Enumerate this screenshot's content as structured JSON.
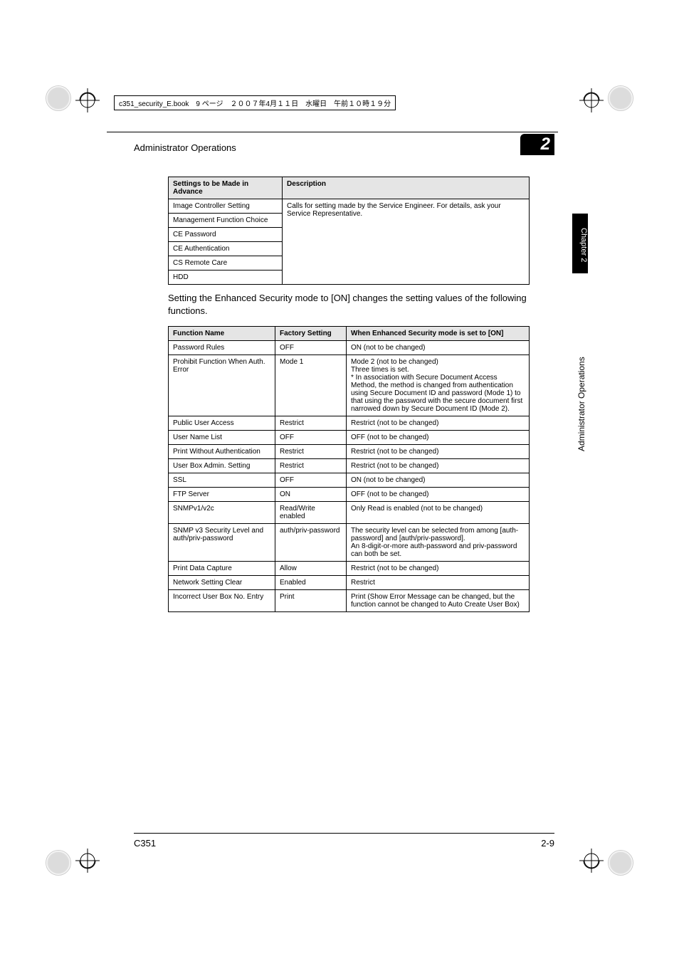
{
  "printmark_text": "c351_security_E.book　9 ページ　２００７年4月１１日　水曜日　午前１０時１９分",
  "header": {
    "title": "Administrator Operations",
    "badge": "2"
  },
  "sideTab": {
    "chapter": "Chapter 2",
    "label": "Administrator Operations"
  },
  "table1": {
    "headers": [
      "Settings to be Made in Advance",
      "Description"
    ],
    "desc_merged": "Calls for setting made by the Service Engineer. For details, ask your Service Representative.",
    "rows": [
      "Image Controller Setting",
      "Management Function Choice",
      "CE Password",
      "CE Authentication",
      "CS Remote Care",
      "HDD"
    ]
  },
  "paragraph": "Setting the Enhanced Security mode to [ON] changes the setting values of the following functions.",
  "table2": {
    "headers": [
      "Function Name",
      "Factory Setting",
      "When Enhanced Security mode is set to [ON]"
    ],
    "rows": [
      {
        "c1": "Password Rules",
        "c2": "OFF",
        "c3": "ON (not to be changed)"
      },
      {
        "c1": "Prohibit Function When Auth. Error",
        "c2": "Mode 1",
        "c3": "Mode 2 (not to be changed)\nThree times is set.\n* In association with Secure Document Access Method, the method is changed from authentication using Secure Document ID and password (Mode 1) to that using the password with the secure document first narrowed down by Secure Document ID (Mode 2)."
      },
      {
        "c1": "Public User Access",
        "c2": "Restrict",
        "c3": "Restrict (not to be changed)"
      },
      {
        "c1": "User Name List",
        "c2": "OFF",
        "c3": "OFF (not to be changed)"
      },
      {
        "c1": "Print Without Authentication",
        "c2": "Restrict",
        "c3": "Restrict (not to be changed)"
      },
      {
        "c1": "User Box Admin. Setting",
        "c2": "Restrict",
        "c3": "Restrict (not to be changed)"
      },
      {
        "c1": "SSL",
        "c2": "OFF",
        "c3": "ON (not to be changed)"
      },
      {
        "c1": "FTP Server",
        "c2": "ON",
        "c3": "OFF (not to be changed)"
      },
      {
        "c1": "SNMPv1/v2c",
        "c2": "Read/Write enabled",
        "c3": "Only Read is enabled (not to be changed)"
      },
      {
        "c1": "SNMP v3 Security Level and auth/priv-password",
        "c2": "auth/priv-password",
        "c3": "The security level can be selected from among [auth-password] and [auth/priv-password].\nAn 8-digit-or-more auth-password and priv-password can both be set."
      },
      {
        "c1": "Print Data Capture",
        "c2": "Allow",
        "c3": "Restrict (not to be changed)"
      },
      {
        "c1": "Network Setting Clear",
        "c2": "Enabled",
        "c3": "Restrict"
      },
      {
        "c1": "Incorrect User Box No. Entry",
        "c2": "Print",
        "c3": "Print (Show Error Message can be changed, but the function cannot be changed to Auto Create User Box)"
      }
    ]
  },
  "footer": {
    "left": "C351",
    "right": "2-9"
  },
  "colors": {
    "page_bg": "#ffffff",
    "text": "#000000",
    "header_cell_bg": "#e5e5e5",
    "border": "#000000"
  }
}
